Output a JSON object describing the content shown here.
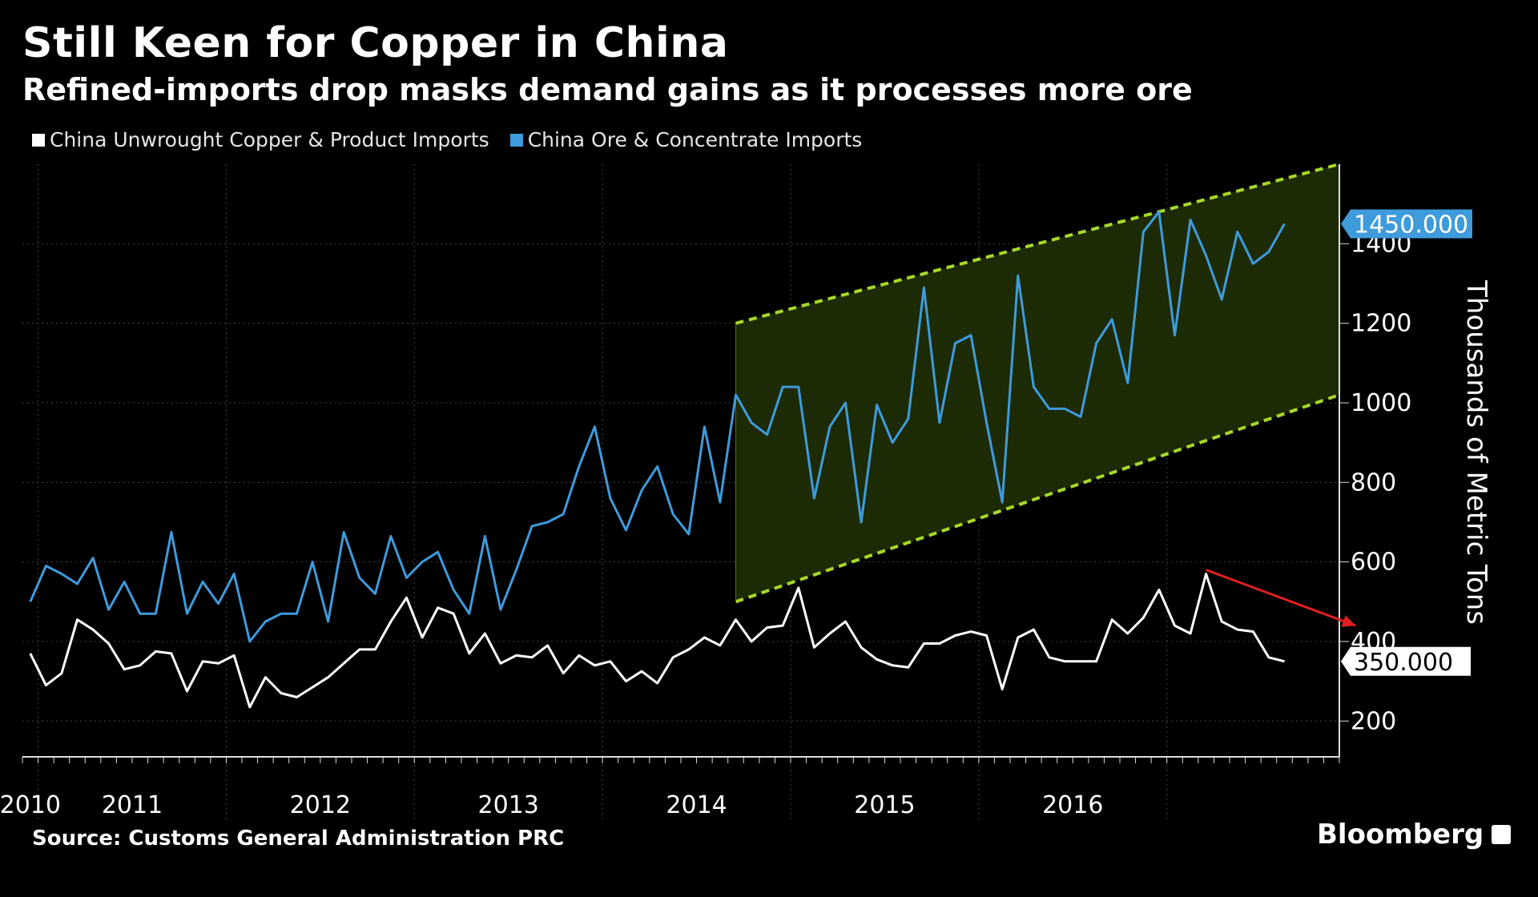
{
  "title": "Still Keen for Copper in China",
  "subtitle": "Refined-imports drop masks demand gains as it processes more ore",
  "source": "Source: Customs General Administration PRC",
  "brand": "Bloomberg",
  "colors": {
    "background": "#000000",
    "unwrought": "#ffffff",
    "ore": "#3e9bdc",
    "channel_fill": "#1d2a06",
    "channel_line": "#a6d82a",
    "arrow": "#e02020",
    "grid": "#444444"
  },
  "chart_data": {
    "type": "line",
    "ylabel": "Thousands of Metric Tons",
    "ylim": [
      110,
      1600
    ],
    "yticks": [
      200,
      400,
      600,
      800,
      1000,
      1200,
      1400
    ],
    "x_start": "2009-12",
    "x_labels": [
      "2010",
      "2011",
      "2012",
      "2013",
      "2014",
      "2015",
      "2016"
    ],
    "legend_position": "top-left",
    "grid": true,
    "series": [
      {
        "name": "China Unwrought Copper & Product Imports",
        "color": "#ffffff",
        "last_value_label": "350.000",
        "values": [
          370,
          290,
          320,
          455,
          430,
          395,
          330,
          340,
          375,
          370,
          275,
          350,
          345,
          365,
          235,
          310,
          270,
          260,
          285,
          310,
          345,
          380,
          380,
          450,
          510,
          410,
          485,
          470,
          370,
          420,
          345,
          365,
          360,
          390,
          320,
          365,
          340,
          350,
          300,
          325,
          295,
          360,
          380,
          410,
          390,
          455,
          400,
          435,
          440,
          535,
          385,
          420,
          450,
          385,
          355,
          340,
          335,
          395,
          395,
          415,
          425,
          415,
          280,
          410,
          430,
          360,
          350,
          350,
          350,
          455,
          420,
          460,
          530,
          440,
          420,
          570,
          450,
          430,
          425,
          360,
          350
        ]
      },
      {
        "name": "China Ore & Concentrate Imports",
        "color": "#3e9bdc",
        "last_value_label": "1450.000",
        "values": [
          500,
          590,
          570,
          545,
          610,
          480,
          550,
          470,
          470,
          675,
          470,
          550,
          495,
          570,
          400,
          450,
          470,
          470,
          600,
          450,
          675,
          560,
          520,
          665,
          560,
          600,
          625,
          530,
          470,
          665,
          480,
          580,
          690,
          700,
          720,
          840,
          940,
          760,
          680,
          780,
          840,
          720,
          670,
          940,
          750,
          1020,
          950,
          920,
          1040,
          1040,
          760,
          940,
          1000,
          700,
          995,
          900,
          960,
          1290,
          950,
          1150,
          1170,
          950,
          750,
          1320,
          1040,
          985,
          985,
          965,
          1150,
          1210,
          1050,
          1430,
          1480,
          1170,
          1460,
          1370,
          1260,
          1430,
          1350,
          1380,
          1450
        ]
      }
    ],
    "annotations": [
      {
        "type": "channel",
        "from": "2013-09",
        "to": "2016-12",
        "upper": [
          1200,
          1600
        ],
        "lower": [
          500,
          1020
        ]
      },
      {
        "type": "arrow",
        "text": "",
        "from": [
          "2016-03",
          580
        ],
        "to": [
          "2016-11",
          440
        ]
      }
    ]
  }
}
